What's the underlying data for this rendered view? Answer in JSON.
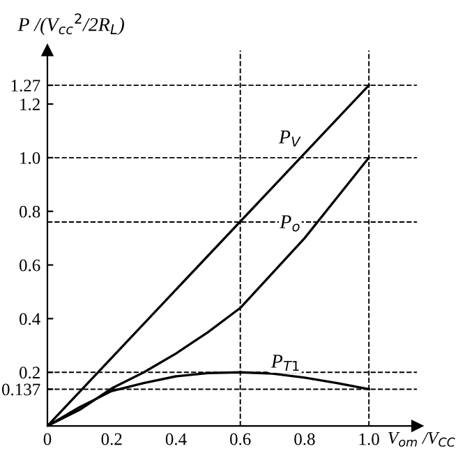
{
  "chart_data": {
    "type": "line",
    "ylabel": "P /(V$_{cc}$$^{2}$/2R$_{L}$)",
    "xlabel": "V$_{om}$ /V$_{CC}$",
    "x": [
      0,
      0.1,
      0.2,
      0.3,
      0.4,
      0.5,
      0.6,
      0.7,
      0.8,
      0.9,
      1.0
    ],
    "series": [
      {
        "name": "P$_{V}$",
        "color": "#000000",
        "x": [
          0,
          1.0
        ],
        "values": [
          0,
          1.27
        ]
      },
      {
        "name": "P$_{o}$",
        "color": "#000000",
        "values": [
          0,
          0.06,
          0.14,
          0.2,
          0.27,
          0.35,
          0.44,
          0.57,
          0.7,
          0.85,
          1.0
        ]
      },
      {
        "name": "P$_{T1}$",
        "color": "#000000",
        "values": [
          0,
          0.07,
          0.13,
          0.16,
          0.185,
          0.197,
          0.2,
          0.195,
          0.18,
          0.16,
          0.137
        ]
      }
    ],
    "ref_lines": [
      {
        "axis": "y",
        "value": 1.27,
        "line_style": "dashed",
        "color": "#000000"
      },
      {
        "axis": "y",
        "value": 1.0,
        "line_style": "dashed",
        "color": "#000000"
      },
      {
        "axis": "y",
        "value": 0.76,
        "line_style": "dashed",
        "color": "#000000"
      },
      {
        "axis": "y",
        "value": 0.2,
        "line_style": "dashed",
        "color": "#000000"
      },
      {
        "axis": "y",
        "value": 0.137,
        "line_style": "dashed",
        "color": "#000000"
      },
      {
        "axis": "x",
        "value": 0.6,
        "line_style": "dashed",
        "color": "#000000"
      },
      {
        "axis": "x",
        "value": 1.0,
        "line_style": "dashed",
        "color": "#000000"
      }
    ],
    "xlim": [
      0,
      1.15
    ],
    "ylim": [
      0,
      1.4
    ],
    "xticks": [
      0,
      0.2,
      0.4,
      0.6,
      0.8,
      {
        "value": 1.0,
        "label": "1.0"
      }
    ],
    "yticks": [
      0.137,
      0.2,
      0.4,
      0.6,
      0.8,
      {
        "value": 1.0,
        "label": "1.0"
      },
      1.2,
      1.27
    ],
    "grid": false,
    "legend": false,
    "marker": "none",
    "line_style": "solid"
  }
}
